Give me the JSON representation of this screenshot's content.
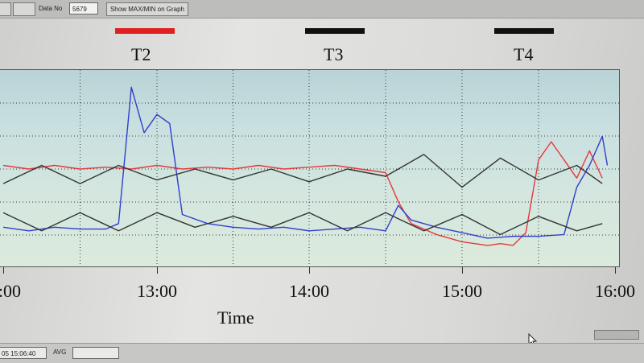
{
  "toolbar": {
    "left_button_label": "",
    "second_button_label": "",
    "data_no_label": "Data No",
    "data_no_value": "5679",
    "show_maxmin_label": "Show MAX/MIN on Graph"
  },
  "status_bar": {
    "datetime_value": "05 15:06:40",
    "avg_label": "AVG",
    "avg_value": ""
  },
  "chart_data": {
    "type": "line",
    "title": "",
    "xlabel": "Time",
    "ylabel": "",
    "x_unit": "time of day",
    "xlim": [
      "12:00",
      "16:00"
    ],
    "ylim": [
      0,
      100
    ],
    "x_tick_labels": [
      ":00",
      "13:00",
      "14:00",
      "15:00",
      "16:00"
    ],
    "grid": true,
    "legend": {
      "placement": "top",
      "entries": [
        {
          "label": "T2",
          "color": "#e02020"
        },
        {
          "label": "T3",
          "color": "#111111"
        },
        {
          "label": "T4",
          "color": "#111111"
        }
      ]
    },
    "series": [
      {
        "color": "#e8383d",
        "x": [
          "12:00",
          "12:10",
          "12:20",
          "12:30",
          "12:40",
          "12:50",
          "13:00",
          "13:10",
          "13:20",
          "13:30",
          "13:40",
          "13:50",
          "14:00",
          "14:10",
          "14:20",
          "14:30",
          "14:35",
          "14:40",
          "14:50",
          "15:00",
          "15:10",
          "15:15",
          "15:20",
          "15:25",
          "15:30",
          "15:35",
          "15:40",
          "15:45",
          "15:50",
          "15:55"
        ],
        "y": [
          52,
          50,
          52,
          50,
          51,
          50,
          52,
          50,
          51,
          50,
          52,
          50,
          51,
          52,
          50,
          48,
          32,
          20,
          14,
          10,
          8,
          9,
          8,
          15,
          55,
          65,
          55,
          45,
          60,
          45
        ]
      },
      {
        "color": "#2f3fcf",
        "x": [
          "12:00",
          "12:10",
          "12:20",
          "12:30",
          "12:40",
          "12:45",
          "12:50",
          "12:55",
          "13:00",
          "13:05",
          "13:10",
          "13:20",
          "13:30",
          "13:40",
          "13:50",
          "14:00",
          "14:10",
          "14:20",
          "14:30",
          "14:35",
          "14:40",
          "14:50",
          "15:00",
          "15:10",
          "15:20",
          "15:30",
          "15:40",
          "15:45",
          "15:50",
          "15:55",
          "15:57"
        ],
        "y": [
          18,
          16,
          18,
          17,
          17,
          20,
          95,
          70,
          80,
          75,
          25,
          20,
          18,
          17,
          18,
          16,
          17,
          18,
          16,
          30,
          22,
          18,
          15,
          12,
          13,
          13,
          14,
          40,
          52,
          68,
          52
        ]
      },
      {
        "color": "#333333",
        "x": [
          "12:00",
          "12:15",
          "12:30",
          "12:45",
          "13:00",
          "13:15",
          "13:30",
          "13:45",
          "14:00",
          "14:15",
          "14:30",
          "14:45",
          "15:00",
          "15:15",
          "15:30",
          "15:45",
          "15:55"
        ],
        "y": [
          42,
          52,
          42,
          52,
          44,
          50,
          44,
          50,
          43,
          50,
          46,
          58,
          40,
          56,
          44,
          52,
          42
        ]
      },
      {
        "color": "#333333",
        "x": [
          "12:00",
          "12:15",
          "12:30",
          "12:45",
          "13:00",
          "13:15",
          "13:30",
          "13:45",
          "14:00",
          "14:15",
          "14:30",
          "14:45",
          "15:00",
          "15:15",
          "15:30",
          "15:45",
          "15:55"
        ],
        "y": [
          26,
          16,
          26,
          16,
          26,
          18,
          24,
          18,
          26,
          16,
          26,
          16,
          25,
          14,
          24,
          16,
          20
        ]
      }
    ]
  }
}
